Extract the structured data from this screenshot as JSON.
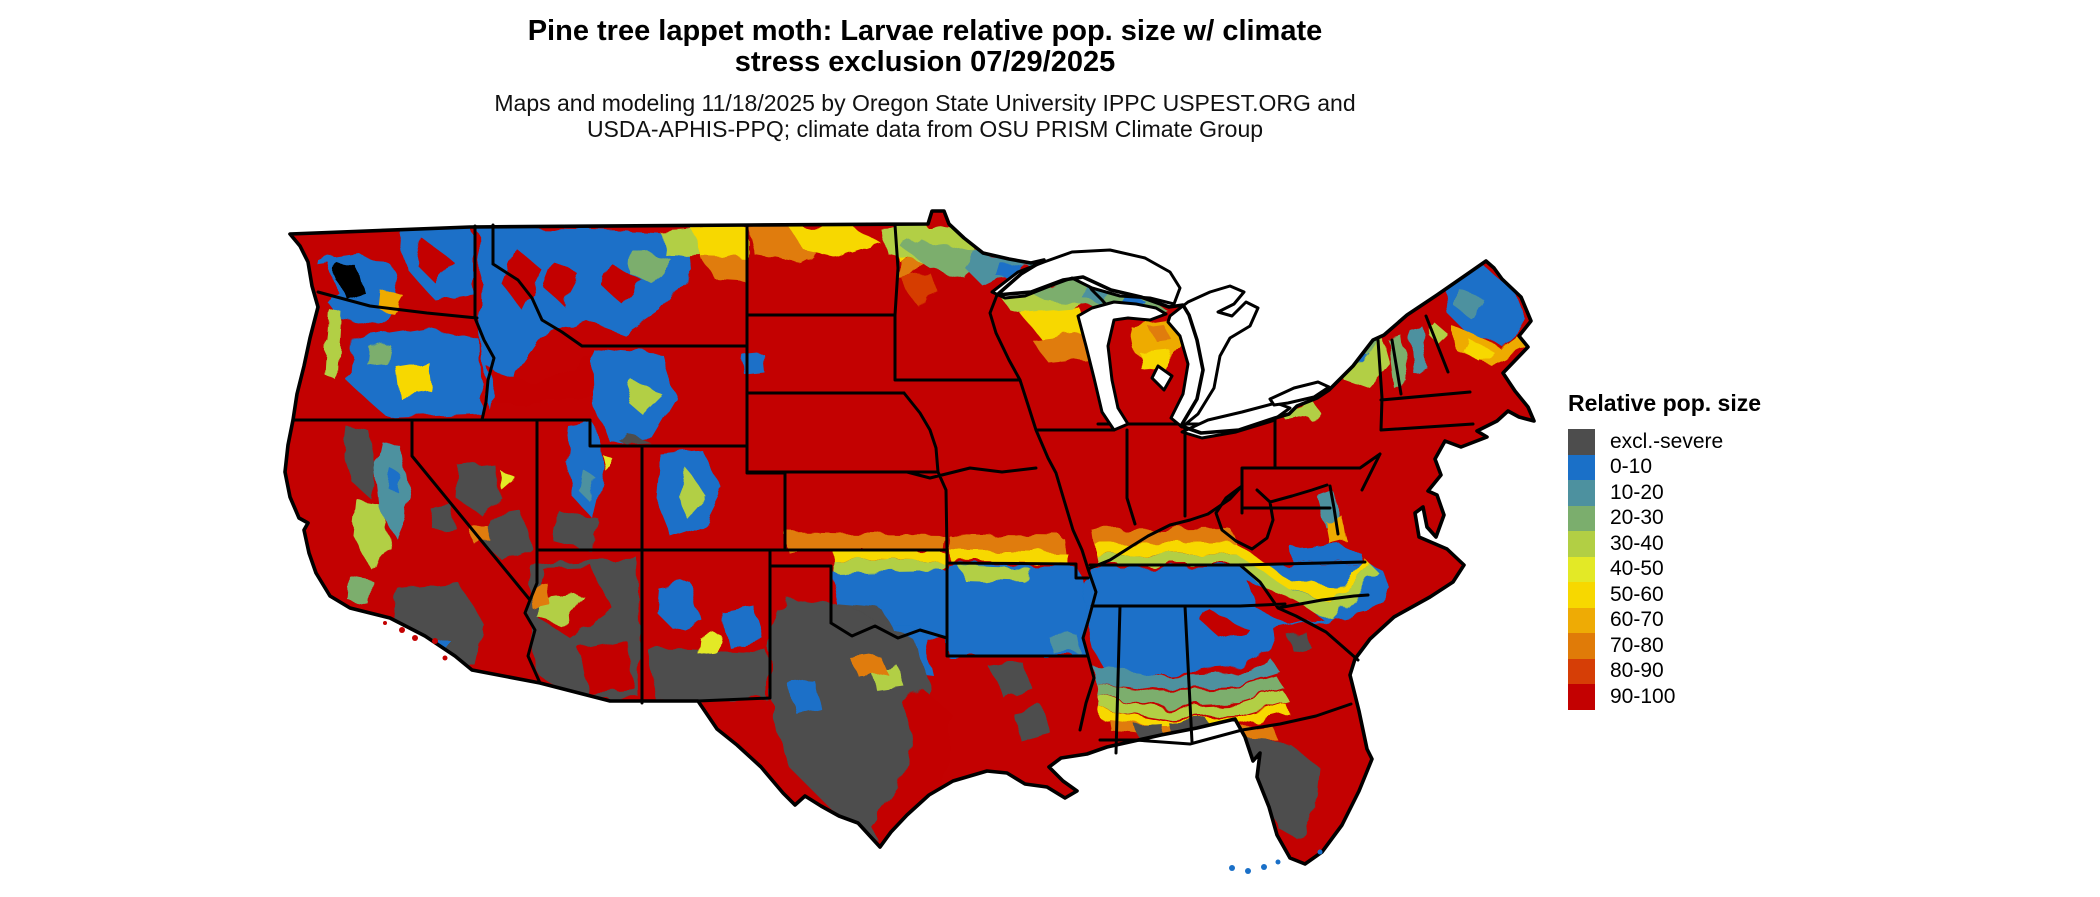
{
  "title": {
    "line1": "Pine tree lappet moth: Larvae relative pop. size w/ climate",
    "line2": "stress exclusion 07/29/2025"
  },
  "subtitle": {
    "line1": "Maps and modeling 11/18/2025 by Oregon State University IPPC USPEST.ORG and",
    "line2": "USDA-APHIS-PPQ; climate data from OSU PRISM Climate Group"
  },
  "legend": {
    "title": "Relative pop. size",
    "items": [
      {
        "key": "excl",
        "label": "excl.-severe",
        "color": "#4d4d4d"
      },
      {
        "key": "b0",
        "label": "0-10",
        "color": "#1a70c8"
      },
      {
        "key": "b10",
        "label": "10-20",
        "color": "#4d919f"
      },
      {
        "key": "b20",
        "label": "20-30",
        "color": "#7bae6d"
      },
      {
        "key": "b30",
        "label": "30-40",
        "color": "#b2cf44"
      },
      {
        "key": "b40",
        "label": "40-50",
        "color": "#e3e926"
      },
      {
        "key": "b50",
        "label": "50-60",
        "color": "#f7d800"
      },
      {
        "key": "b60",
        "label": "60-70",
        "color": "#eeab05"
      },
      {
        "key": "b70",
        "label": "70-80",
        "color": "#e07b08"
      },
      {
        "key": "b80",
        "label": "80-90",
        "color": "#d63e06"
      },
      {
        "key": "b90",
        "label": "90-100",
        "color": "#c30101"
      }
    ]
  },
  "map": {
    "region": "Continental United States",
    "kind": "raster risk map",
    "border_color": "#000000",
    "water_color": "#ffffff",
    "background_color": "#ffffff"
  }
}
